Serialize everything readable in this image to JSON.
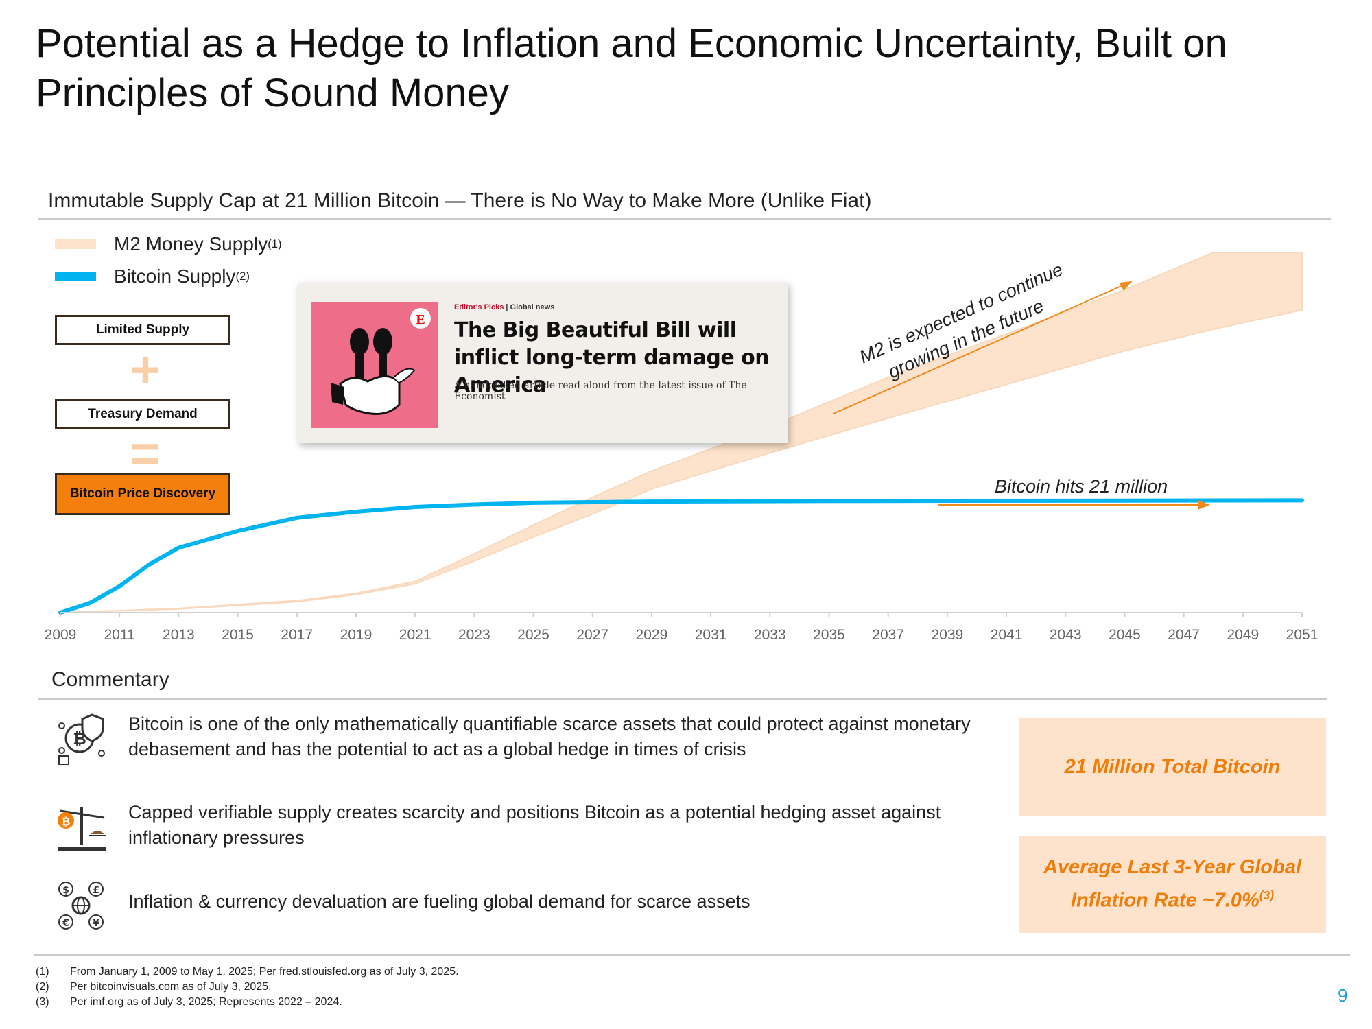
{
  "title": "Potential as a Hedge to Inflation and Economic Uncertainty, Built on Principles of Sound Money",
  "section_heading": "Immutable Supply Cap at 21 Million Bitcoin — There is No Way to Make More (Unlike Fiat)",
  "legend": {
    "m2": {
      "label": "M2 Money Supply",
      "note": "(1)",
      "color": "#fde3cc"
    },
    "btc": {
      "label": "Bitcoin Supply",
      "note": "(2)",
      "color": "#00b4f0"
    }
  },
  "flow": {
    "limited_supply": "Limited Supply",
    "plus": "+",
    "treasury_demand": "Treasury Demand",
    "equals": "=",
    "price_discovery": "Bitcoin Price Discovery"
  },
  "article": {
    "kicker_section": "Editor's Picks",
    "kicker_rest": "| Global news",
    "headline": "The Big Beautiful Bill will inflict long-term damage on America",
    "subhead": "A handpicked article read aloud from the latest issue of The Economist",
    "logo_letter": "E"
  },
  "chart_data": {
    "type": "line",
    "title": "Immutable Supply Cap at 21 Million Bitcoin — There is No Way to Make More (Unlike Fiat)",
    "x_ticks": [
      "2009",
      "2011",
      "2013",
      "2015",
      "2017",
      "2019",
      "2021",
      "2023",
      "2025",
      "2027",
      "2029",
      "2031",
      "2033",
      "2035",
      "2037",
      "2039",
      "2041",
      "2043",
      "2045",
      "2047",
      "2049",
      "2051"
    ],
    "xlim": [
      2009,
      2051
    ],
    "ylim": [
      0,
      30
    ],
    "y_axis_labels_shown": false,
    "series": [
      {
        "name": "Bitcoin Supply",
        "x": [
          2009,
          2010,
          2011,
          2012,
          2013,
          2015,
          2017,
          2019,
          2021,
          2023,
          2025,
          2029,
          2035,
          2051
        ],
        "y": [
          0.0,
          0.8,
          2.2,
          4.0,
          5.4,
          6.8,
          7.9,
          8.4,
          8.8,
          9.0,
          9.15,
          9.25,
          9.3,
          9.35
        ]
      },
      {
        "name": "M2 Money Supply",
        "kind": "band",
        "x": [
          2009,
          2013,
          2017,
          2019,
          2021,
          2023,
          2025,
          2027,
          2029,
          2033,
          2037,
          2041,
          2045,
          2048,
          2051
        ],
        "lower": [
          0.0,
          0.3,
          0.9,
          1.5,
          2.4,
          4.3,
          6.3,
          8.2,
          10.3,
          13.3,
          16.2,
          19.0,
          21.8,
          23.6,
          25.2
        ],
        "upper": [
          0.0,
          0.35,
          1.0,
          1.6,
          2.6,
          4.9,
          7.3,
          9.6,
          11.8,
          15.5,
          19.6,
          23.2,
          26.9,
          30.0,
          30.0
        ]
      }
    ],
    "annotations": [
      {
        "text": "M2 is expected to continue growing in the future",
        "lines": [
          "M2 is expected to continue",
          "growing in the future"
        ]
      },
      {
        "text": "Bitcoin hits 21 million"
      }
    ]
  },
  "commentary": {
    "heading": "Commentary",
    "items": [
      {
        "text": "Bitcoin is one of the only mathematically quantifiable scarce assets that could protect against monetary debasement and has the potential to act as a global hedge in times of crisis",
        "icon": "bitcoin-shield-icon"
      },
      {
        "text": "Capped verifiable supply creates scarcity and positions Bitcoin as a potential hedging asset against inflationary pressures",
        "icon": "balance-scale-icon"
      },
      {
        "text": "Inflation & currency devaluation are fueling global demand for scarce assets",
        "icon": "currency-globe-icon"
      }
    ]
  },
  "stats": {
    "total_bitcoin": "21 Million Total Bitcoin",
    "inflation_line1": "Average Last 3-Year Global",
    "inflation_line2": "Inflation Rate ~7.0%",
    "inflation_note": "(3)"
  },
  "footnotes": [
    {
      "num": "(1)",
      "text": "From January 1, 2009 to May 1, 2025; Per fred.stlouisfed.org as of July 3, 2025."
    },
    {
      "num": "(2)",
      "text": "Per bitcoinvisuals.com as of July 3, 2025."
    },
    {
      "num": "(3)",
      "text": "Per imf.org as of July 3, 2025; Represents 2022 – 2024."
    }
  ],
  "page_number": "9",
  "colors": {
    "accent_orange": "#f57f0d",
    "stat_bg": "#fde3cc",
    "btc_blue": "#00b4f0",
    "rule": "#c9c9c9"
  }
}
